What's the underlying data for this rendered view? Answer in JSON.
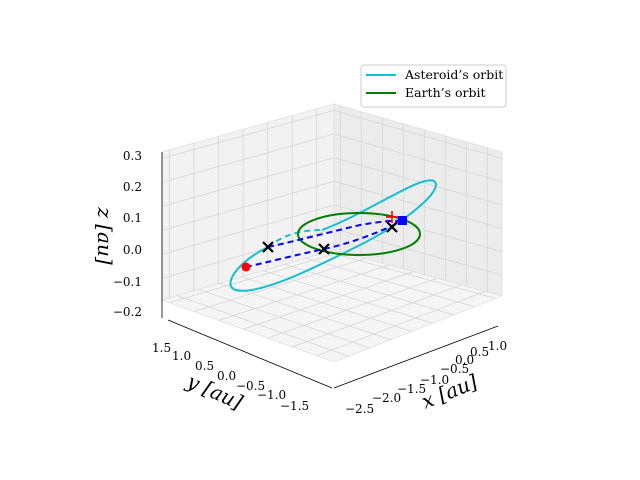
{
  "chart_data": {
    "type": "line3d",
    "xlabel": "x [au]",
    "ylabel": "y [au]",
    "zlabel": "z [au]",
    "x_ticks": [
      "−2.5",
      "−2.0",
      "−1.5",
      "−1.0",
      "−0.5",
      "0.0",
      "0.5",
      "1.0"
    ],
    "y_ticks": [
      "1.5",
      "1.0",
      "0.5",
      "0.0",
      "−0.5",
      "−1.0",
      "−1.5"
    ],
    "z_ticks": [
      "0.3",
      "0.2",
      "0.1",
      "0.0",
      "−0.1",
      "−0.2"
    ],
    "grid": true,
    "legend_position": "top-right",
    "series": [
      {
        "name": "Asteroid’s orbit",
        "color": "#17becf",
        "style": "solid"
      },
      {
        "name": "Earth’s orbit",
        "color": "#008000",
        "style": "solid"
      }
    ],
    "transfer_path_color": "#0000ff",
    "markers": [
      {
        "kind": "start",
        "color": "#ff0000",
        "symbol": "circle"
      },
      {
        "kind": "end",
        "color": "#0000ff",
        "symbol": "square"
      },
      {
        "kind": "waypoint",
        "color": "#000000",
        "symbol": "x"
      },
      {
        "kind": "waypoint",
        "color": "#000000",
        "symbol": "x"
      },
      {
        "kind": "waypoint",
        "color": "#000000",
        "symbol": "x"
      },
      {
        "kind": "launch",
        "color": "#ff0000",
        "symbol": "plus"
      }
    ]
  }
}
